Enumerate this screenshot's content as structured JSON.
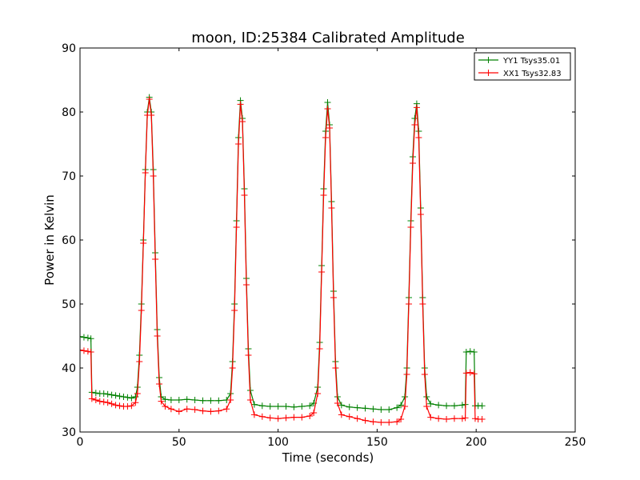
{
  "chart_data": {
    "type": "line",
    "title": "moon, ID:25384 Calibrated Amplitude",
    "xlabel": "Time (seconds)",
    "ylabel": "Power in Kelvin",
    "xlim": [
      0,
      250
    ],
    "ylim": [
      30,
      90
    ],
    "xticks": [
      0,
      50,
      100,
      150,
      200,
      250
    ],
    "yticks": [
      30,
      40,
      50,
      60,
      70,
      80,
      90
    ],
    "grid": false,
    "legend_position": "top-right",
    "marker": "+",
    "series": [
      {
        "name": "YY1 Tsys35.01",
        "color": "#008000",
        "points": [
          [
            0,
            44.9
          ],
          [
            2,
            44.8
          ],
          [
            4,
            44.7
          ],
          [
            5.5,
            44.6
          ],
          [
            6,
            36.2
          ],
          [
            8,
            36.1
          ],
          [
            10,
            36.0
          ],
          [
            12,
            36.0
          ],
          [
            14,
            35.9
          ],
          [
            16,
            35.8
          ],
          [
            18,
            35.7
          ],
          [
            20,
            35.6
          ],
          [
            22,
            35.5
          ],
          [
            24,
            35.4
          ],
          [
            26,
            35.3
          ],
          [
            28,
            35.5
          ],
          [
            29,
            37.0
          ],
          [
            30,
            42.0
          ],
          [
            31,
            50.0
          ],
          [
            32,
            60.0
          ],
          [
            33,
            71.0
          ],
          [
            34,
            80.0
          ],
          [
            35,
            82.3
          ],
          [
            36,
            80.0
          ],
          [
            37,
            71.0
          ],
          [
            38,
            58.0
          ],
          [
            39,
            46.0
          ],
          [
            40,
            38.5
          ],
          [
            41,
            35.5
          ],
          [
            43,
            35.1
          ],
          [
            46,
            35.0
          ],
          [
            50,
            35.0
          ],
          [
            54,
            35.1
          ],
          [
            58,
            35.0
          ],
          [
            62,
            34.9
          ],
          [
            66,
            34.9
          ],
          [
            70,
            34.9
          ],
          [
            74,
            35.0
          ],
          [
            76,
            36.0
          ],
          [
            77,
            41.0
          ],
          [
            78,
            50.0
          ],
          [
            79,
            63.0
          ],
          [
            80,
            76.0
          ],
          [
            81,
            81.8
          ],
          [
            82,
            79.0
          ],
          [
            83,
            68.0
          ],
          [
            84,
            54.0
          ],
          [
            85,
            43.0
          ],
          [
            86,
            36.5
          ],
          [
            88,
            34.3
          ],
          [
            92,
            34.1
          ],
          [
            96,
            34.0
          ],
          [
            100,
            34.0
          ],
          [
            104,
            34.0
          ],
          [
            108,
            33.9
          ],
          [
            112,
            34.0
          ],
          [
            116,
            34.1
          ],
          [
            118,
            34.5
          ],
          [
            120,
            37.0
          ],
          [
            121,
            44.0
          ],
          [
            122,
            56.0
          ],
          [
            123,
            68.0
          ],
          [
            124,
            77.0
          ],
          [
            125,
            81.5
          ],
          [
            126,
            78.0
          ],
          [
            127,
            66.0
          ],
          [
            128,
            52.0
          ],
          [
            129,
            41.0
          ],
          [
            130,
            35.5
          ],
          [
            132,
            34.2
          ],
          [
            136,
            33.9
          ],
          [
            140,
            33.8
          ],
          [
            144,
            33.7
          ],
          [
            148,
            33.6
          ],
          [
            152,
            33.5
          ],
          [
            156,
            33.5
          ],
          [
            160,
            33.8
          ],
          [
            162,
            34.2
          ],
          [
            164,
            35.5
          ],
          [
            165,
            40.0
          ],
          [
            166,
            51.0
          ],
          [
            167,
            63.0
          ],
          [
            168,
            73.0
          ],
          [
            169,
            79.0
          ],
          [
            170,
            81.3
          ],
          [
            171,
            77.0
          ],
          [
            172,
            65.0
          ],
          [
            173,
            51.0
          ],
          [
            174,
            40.0
          ],
          [
            175,
            35.5
          ],
          [
            177,
            34.4
          ],
          [
            181,
            34.2
          ],
          [
            185,
            34.1
          ],
          [
            189,
            34.1
          ],
          [
            193,
            34.2
          ],
          [
            194.5,
            34.3
          ],
          [
            195,
            42.5
          ],
          [
            197,
            42.6
          ],
          [
            199,
            42.5
          ],
          [
            199.5,
            34.1
          ],
          [
            201,
            34.1
          ],
          [
            203,
            34.1
          ]
        ]
      },
      {
        "name": "XX1 Tsys32.83",
        "color": "#ff0000",
        "points": [
          [
            0,
            42.8
          ],
          [
            2,
            42.7
          ],
          [
            4,
            42.6
          ],
          [
            5.5,
            42.5
          ],
          [
            6,
            35.2
          ],
          [
            8,
            35.0
          ],
          [
            10,
            34.8
          ],
          [
            12,
            34.7
          ],
          [
            14,
            34.6
          ],
          [
            16,
            34.4
          ],
          [
            18,
            34.2
          ],
          [
            20,
            34.1
          ],
          [
            22,
            34.0
          ],
          [
            24,
            34.0
          ],
          [
            26,
            34.1
          ],
          [
            28,
            34.6
          ],
          [
            29,
            36.0
          ],
          [
            30,
            41.0
          ],
          [
            31,
            49.0
          ],
          [
            32,
            59.5
          ],
          [
            33,
            70.5
          ],
          [
            34,
            79.5
          ],
          [
            35,
            82.0
          ],
          [
            36,
            79.5
          ],
          [
            37,
            70.0
          ],
          [
            38,
            57.0
          ],
          [
            39,
            45.0
          ],
          [
            40,
            37.5
          ],
          [
            41,
            34.8
          ],
          [
            43,
            34.0
          ],
          [
            46,
            33.6
          ],
          [
            50,
            33.2
          ],
          [
            54,
            33.6
          ],
          [
            58,
            33.5
          ],
          [
            62,
            33.3
          ],
          [
            66,
            33.2
          ],
          [
            70,
            33.3
          ],
          [
            74,
            33.6
          ],
          [
            76,
            35.0
          ],
          [
            77,
            40.0
          ],
          [
            78,
            49.0
          ],
          [
            79,
            62.0
          ],
          [
            80,
            75.0
          ],
          [
            81,
            81.2
          ],
          [
            82,
            78.5
          ],
          [
            83,
            67.0
          ],
          [
            84,
            53.0
          ],
          [
            85,
            42.0
          ],
          [
            86,
            35.0
          ],
          [
            88,
            32.7
          ],
          [
            92,
            32.4
          ],
          [
            96,
            32.2
          ],
          [
            100,
            32.1
          ],
          [
            104,
            32.2
          ],
          [
            108,
            32.3
          ],
          [
            112,
            32.3
          ],
          [
            116,
            32.5
          ],
          [
            118,
            33.0
          ],
          [
            120,
            36.0
          ],
          [
            121,
            43.0
          ],
          [
            122,
            55.0
          ],
          [
            123,
            67.0
          ],
          [
            124,
            76.0
          ],
          [
            125,
            80.5
          ],
          [
            126,
            77.5
          ],
          [
            127,
            65.0
          ],
          [
            128,
            51.0
          ],
          [
            129,
            40.0
          ],
          [
            130,
            34.5
          ],
          [
            132,
            32.7
          ],
          [
            136,
            32.4
          ],
          [
            140,
            32.1
          ],
          [
            144,
            31.8
          ],
          [
            148,
            31.6
          ],
          [
            152,
            31.5
          ],
          [
            156,
            31.5
          ],
          [
            160,
            31.6
          ],
          [
            162,
            32.0
          ],
          [
            164,
            34.0
          ],
          [
            165,
            39.0
          ],
          [
            166,
            50.0
          ],
          [
            167,
            62.0
          ],
          [
            168,
            72.0
          ],
          [
            169,
            78.0
          ],
          [
            170,
            80.7
          ],
          [
            171,
            76.0
          ],
          [
            172,
            64.0
          ],
          [
            173,
            50.0
          ],
          [
            174,
            39.0
          ],
          [
            175,
            34.0
          ],
          [
            177,
            32.3
          ],
          [
            181,
            32.1
          ],
          [
            185,
            32.0
          ],
          [
            189,
            32.1
          ],
          [
            193,
            32.1
          ],
          [
            194.5,
            32.2
          ],
          [
            195,
            39.2
          ],
          [
            197,
            39.3
          ],
          [
            199,
            39.1
          ],
          [
            199.5,
            32.1
          ],
          [
            201,
            32.0
          ],
          [
            203,
            32.0
          ]
        ]
      }
    ]
  }
}
